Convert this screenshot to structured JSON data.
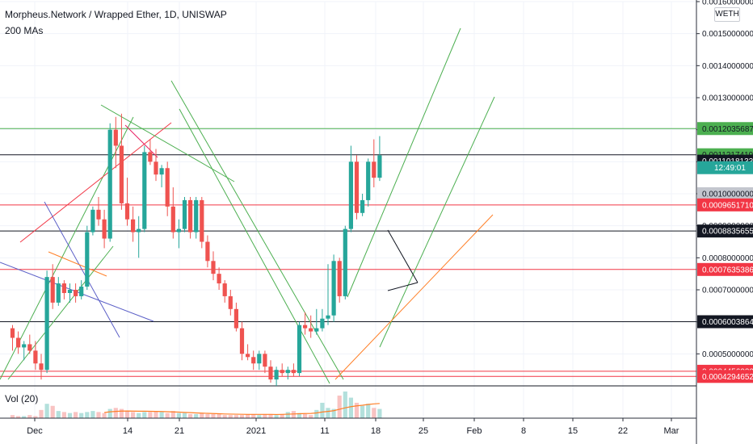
{
  "header": {
    "title": "Morpheus.Network / Wrapped Ether, 1D, UNISWAP",
    "indicator": "200 MAs",
    "volume_label": "Vol (20)",
    "quote_badge": "WETH"
  },
  "chart_data": {
    "type": "candlestick",
    "ylim": [
      0.0004,
      0.0016
    ],
    "y_ticks": [
      "0.0016000000",
      "0.0015000000",
      "0.0014000000",
      "0.0013000000",
      "0.0012000000",
      "0.0011000000",
      "0.0010000000",
      "0.0009000000",
      "0.0008000000",
      "0.0007000000",
      "0.0006000000",
      "0.0005000000"
    ],
    "x_ticks": [
      "Dec",
      "14",
      "21",
      "2021",
      "11",
      "18",
      "25",
      "Feb",
      "8",
      "15",
      "22",
      "Mar"
    ],
    "countdown": "12:49:01",
    "price_labels": [
      {
        "text": "0.0012035687",
        "style": "green-fill",
        "value": 0.0012035687
      },
      {
        "text": "0.0011217419",
        "style": "green-fill",
        "value": 0.0011217419
      },
      {
        "text": "0.0011018133",
        "style": "black",
        "value": 0.0011018133
      },
      {
        "text": "0.0010000000",
        "style": "gray",
        "value": 0.001
      },
      {
        "text": "0.0009651710",
        "style": "red",
        "value": 0.000965171
      },
      {
        "text": "0.0008835655",
        "style": "black",
        "value": 0.0008835655
      },
      {
        "text": "0.0007635386",
        "style": "red",
        "value": 0.0007635386
      },
      {
        "text": "0.0006003864",
        "style": "black",
        "value": 0.0006003864
      },
      {
        "text": "0.0004456030",
        "style": "red",
        "value": 0.000445603
      },
      {
        "text": "0.0004294652",
        "style": "red",
        "value": 0.0004294652
      }
    ],
    "horizontal_lines": [
      {
        "value": 0.0012035687,
        "color": "#4caf50"
      },
      {
        "value": 0.0011217419,
        "color": "#131722"
      },
      {
        "value": 0.000965171,
        "color": "#f23645"
      },
      {
        "value": 0.0008835655,
        "color": "#131722"
      },
      {
        "value": 0.0007635386,
        "color": "#f23645"
      },
      {
        "value": 0.0006003864,
        "color": "#131722"
      },
      {
        "value": 0.000445603,
        "color": "#f23645"
      },
      {
        "value": 0.0004294652,
        "color": "#f23645"
      }
    ],
    "candles": [
      {
        "o": 0.00058,
        "h": 0.00059,
        "l": 0.00051,
        "c": 0.00055
      },
      {
        "o": 0.00055,
        "h": 0.00057,
        "l": 0.0005,
        "c": 0.00052
      },
      {
        "o": 0.00052,
        "h": 0.00054,
        "l": 0.00048,
        "c": 0.00053
      },
      {
        "o": 0.00053,
        "h": 0.00056,
        "l": 0.0005,
        "c": 0.00051
      },
      {
        "o": 0.00051,
        "h": 0.00054,
        "l": 0.00045,
        "c": 0.00047
      },
      {
        "o": 0.00047,
        "h": 0.0005,
        "l": 0.00042,
        "c": 0.00045
      },
      {
        "o": 0.00045,
        "h": 0.00076,
        "l": 0.00044,
        "c": 0.00074
      },
      {
        "o": 0.00074,
        "h": 0.00078,
        "l": 0.00064,
        "c": 0.00066
      },
      {
        "o": 0.00066,
        "h": 0.00074,
        "l": 0.00065,
        "c": 0.00072
      },
      {
        "o": 0.00072,
        "h": 0.00073,
        "l": 0.00067,
        "c": 0.00069
      },
      {
        "o": 0.00069,
        "h": 0.00072,
        "l": 0.00066,
        "c": 0.0007
      },
      {
        "o": 0.0007,
        "h": 0.00072,
        "l": 0.00066,
        "c": 0.00068
      },
      {
        "o": 0.00068,
        "h": 0.00073,
        "l": 0.00067,
        "c": 0.00071
      },
      {
        "o": 0.00071,
        "h": 0.0009,
        "l": 0.0007,
        "c": 0.00088
      },
      {
        "o": 0.00088,
        "h": 0.00096,
        "l": 0.00087,
        "c": 0.00095
      },
      {
        "o": 0.00095,
        "h": 0.00099,
        "l": 0.0009,
        "c": 0.00092
      },
      {
        "o": 0.00092,
        "h": 0.00095,
        "l": 0.00083,
        "c": 0.00086
      },
      {
        "o": 0.00086,
        "h": 0.00122,
        "l": 0.00085,
        "c": 0.0012
      },
      {
        "o": 0.0012,
        "h": 0.00124,
        "l": 0.00108,
        "c": 0.00115
      },
      {
        "o": 0.00115,
        "h": 0.00125,
        "l": 0.00095,
        "c": 0.00097
      },
      {
        "o": 0.00097,
        "h": 0.00105,
        "l": 0.0009,
        "c": 0.00092
      },
      {
        "o": 0.00092,
        "h": 0.00096,
        "l": 0.00085,
        "c": 0.00088
      },
      {
        "o": 0.00088,
        "h": 0.00093,
        "l": 0.0008,
        "c": 0.00089
      },
      {
        "o": 0.00089,
        "h": 0.00115,
        "l": 0.00088,
        "c": 0.00113
      },
      {
        "o": 0.00113,
        "h": 0.00117,
        "l": 0.00109,
        "c": 0.0011
      },
      {
        "o": 0.0011,
        "h": 0.00114,
        "l": 0.00104,
        "c": 0.00106
      },
      {
        "o": 0.00106,
        "h": 0.00109,
        "l": 0.00102,
        "c": 0.00108
      },
      {
        "o": 0.00108,
        "h": 0.0011,
        "l": 0.00093,
        "c": 0.00096
      },
      {
        "o": 0.00096,
        "h": 0.00102,
        "l": 0.00086,
        "c": 0.00088
      },
      {
        "o": 0.00088,
        "h": 0.00092,
        "l": 0.00083,
        "c": 0.00089
      },
      {
        "o": 0.00089,
        "h": 0.00099,
        "l": 0.00088,
        "c": 0.00098
      },
      {
        "o": 0.00098,
        "h": 0.00099,
        "l": 0.00086,
        "c": 0.00088
      },
      {
        "o": 0.00088,
        "h": 0.00099,
        "l": 0.00086,
        "c": 0.00098
      },
      {
        "o": 0.00098,
        "h": 0.00099,
        "l": 0.00083,
        "c": 0.00085
      },
      {
        "o": 0.00085,
        "h": 0.00087,
        "l": 0.00077,
        "c": 0.00079
      },
      {
        "o": 0.00079,
        "h": 0.00082,
        "l": 0.00073,
        "c": 0.00075
      },
      {
        "o": 0.00075,
        "h": 0.00077,
        "l": 0.0007,
        "c": 0.00072
      },
      {
        "o": 0.00072,
        "h": 0.00073,
        "l": 0.00066,
        "c": 0.00068
      },
      {
        "o": 0.00068,
        "h": 0.0007,
        "l": 0.00062,
        "c": 0.00064
      },
      {
        "o": 0.00064,
        "h": 0.00066,
        "l": 0.00057,
        "c": 0.00058
      },
      {
        "o": 0.00058,
        "h": 0.0006,
        "l": 0.00048,
        "c": 0.0005
      },
      {
        "o": 0.0005,
        "h": 0.00053,
        "l": 0.00048,
        "c": 0.00049
      },
      {
        "o": 0.00049,
        "h": 0.00051,
        "l": 0.00045,
        "c": 0.00047
      },
      {
        "o": 0.00047,
        "h": 0.00051,
        "l": 0.00045,
        "c": 0.0005
      },
      {
        "o": 0.0005,
        "h": 0.00051,
        "l": 0.00044,
        "c": 0.00046
      },
      {
        "o": 0.00046,
        "h": 0.00048,
        "l": 0.00041,
        "c": 0.00042
      },
      {
        "o": 0.00042,
        "h": 0.00046,
        "l": 0.0004,
        "c": 0.00045
      },
      {
        "o": 0.00045,
        "h": 0.00047,
        "l": 0.00043,
        "c": 0.00044
      },
      {
        "o": 0.00044,
        "h": 0.00046,
        "l": 0.00042,
        "c": 0.00045
      },
      {
        "o": 0.00045,
        "h": 0.00047,
        "l": 0.00043,
        "c": 0.00044
      },
      {
        "o": 0.00044,
        "h": 0.0006,
        "l": 0.00043,
        "c": 0.00059
      },
      {
        "o": 0.00059,
        "h": 0.00063,
        "l": 0.00056,
        "c": 0.00058
      },
      {
        "o": 0.00058,
        "h": 0.00062,
        "l": 0.00055,
        "c": 0.00057
      },
      {
        "o": 0.00057,
        "h": 0.00064,
        "l": 0.00056,
        "c": 0.00058
      },
      {
        "o": 0.00058,
        "h": 0.00064,
        "l": 0.00057,
        "c": 0.00061
      },
      {
        "o": 0.00061,
        "h": 0.00078,
        "l": 0.00059,
        "c": 0.00062
      },
      {
        "o": 0.00062,
        "h": 0.00081,
        "l": 0.0006,
        "c": 0.00079
      },
      {
        "o": 0.00079,
        "h": 0.0008,
        "l": 0.00066,
        "c": 0.00068
      },
      {
        "o": 0.00068,
        "h": 0.0009,
        "l": 0.00067,
        "c": 0.00089
      },
      {
        "o": 0.00089,
        "h": 0.00115,
        "l": 0.00088,
        "c": 0.0011
      },
      {
        "o": 0.0011,
        "h": 0.00112,
        "l": 0.00092,
        "c": 0.00094
      },
      {
        "o": 0.00094,
        "h": 0.001,
        "l": 0.00093,
        "c": 0.00098
      },
      {
        "o": 0.00098,
        "h": 0.00111,
        "l": 0.00096,
        "c": 0.0011
      },
      {
        "o": 0.0011,
        "h": 0.00117,
        "l": 0.00102,
        "c": 0.00105
      },
      {
        "o": 0.00105,
        "h": 0.00118,
        "l": 0.00104,
        "c": 0.00112
      }
    ],
    "volume": [
      3,
      2,
      2,
      3,
      2,
      8,
      14,
      12,
      7,
      6,
      5,
      6,
      5,
      6,
      7,
      6,
      5,
      9,
      10,
      9,
      7,
      6,
      5,
      6,
      6,
      7,
      6,
      5,
      7,
      5,
      5,
      4,
      4,
      5,
      4,
      4,
      4,
      3,
      3,
      3,
      3,
      4,
      4,
      3,
      4,
      4,
      3,
      4,
      6,
      7,
      5,
      4,
      3,
      8,
      15,
      10,
      9,
      22,
      26,
      20,
      15,
      12,
      14,
      10,
      9
    ],
    "ma_volume": [
      null,
      null,
      null,
      null,
      null,
      null,
      null,
      null,
      null,
      null,
      null,
      null,
      null,
      null,
      null,
      null,
      5.5,
      6.2,
      6.6,
      6.9,
      7,
      6.9,
      6.8,
      6.8,
      6.7,
      6.6,
      6.5,
      6.3,
      6.1,
      5.9,
      5.6,
      5.4,
      5.1,
      4.9,
      4.7,
      4.5,
      4.3,
      4.1,
      4,
      3.9,
      3.8,
      3.7,
      3.7,
      3.7,
      3.7,
      3.7,
      3.6,
      3.7,
      3.9,
      4.1,
      4.3,
      4.5,
      4.6,
      5.1,
      6,
      6.6,
      7.3,
      8.7,
      10.1,
      11.2,
      12,
      12.6,
      13.4,
      13.9,
      14.3
    ]
  }
}
